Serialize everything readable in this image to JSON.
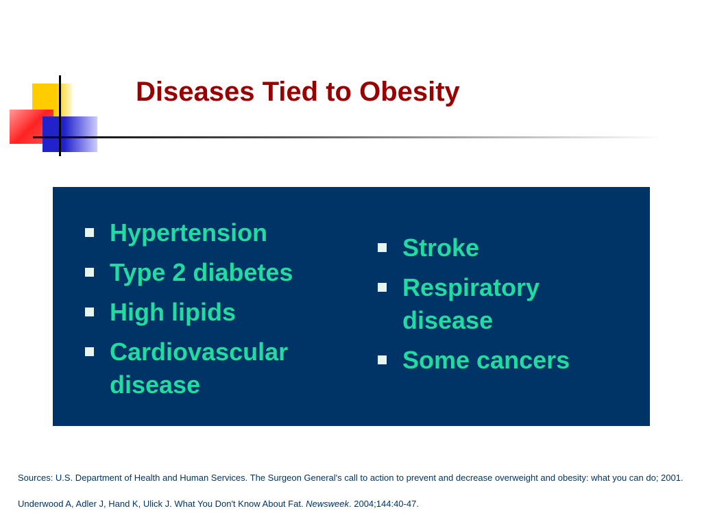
{
  "title": "Diseases Tied to Obesity",
  "left_list": [
    "Hypertension",
    "Type 2 diabetes",
    "High lipids",
    "Cardiovascular disease"
  ],
  "right_list": [
    "Stroke",
    "Respiratory disease",
    "Some cancers"
  ],
  "sources": {
    "line1": "Sources: U.S. Department of Health and Human Services. The Surgeon General's call to action to prevent and decrease overweight and obesity: what you can do; 2001.",
    "line2": {
      "before": "Underwood A, Adler J, Hand K, Ulick J. What You Don't Know About Fat. ",
      "italic": "Newsweek",
      "after": ". 2004;144:40-47."
    }
  }
}
